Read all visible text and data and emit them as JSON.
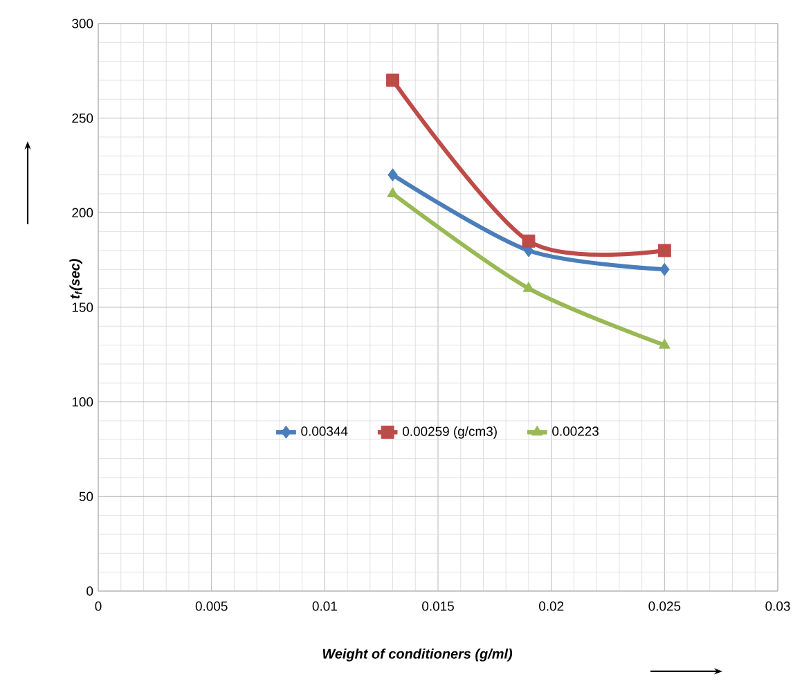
{
  "chart_data": {
    "type": "line",
    "xlabel": "Weight of conditioners (g/ml)",
    "ylabel": "t$_{f}$(sec)",
    "x": [
      0.013,
      0.019,
      0.025
    ],
    "series": [
      {
        "name": "0.00344",
        "color": "#4a7ebb",
        "marker": "diamond",
        "values": [
          220,
          180,
          170
        ]
      },
      {
        "name": "0.00259 (g/cm3)",
        "color": "#be4b48",
        "marker": "square",
        "values": [
          270,
          185,
          180
        ]
      },
      {
        "name": "0.00223",
        "color": "#98b954",
        "marker": "triangle",
        "values": [
          210,
          160,
          130
        ]
      }
    ],
    "xlim": [
      0,
      0.03
    ],
    "xticks": [
      0,
      0.005,
      0.01,
      0.015,
      0.02,
      0.025,
      0.03
    ],
    "ylim": [
      0,
      300
    ],
    "yticks": [
      0,
      50,
      100,
      150,
      200,
      250,
      300
    ],
    "grid": true,
    "legend": "center",
    "line_style": "solid"
  }
}
